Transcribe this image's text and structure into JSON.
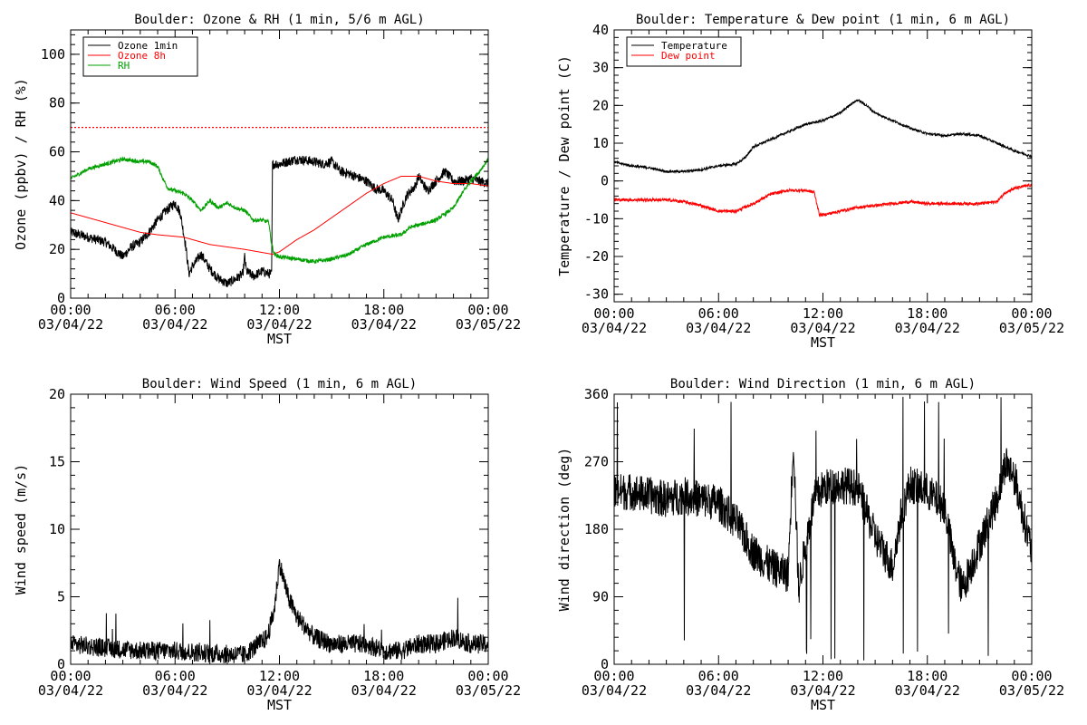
{
  "figure": {
    "background": "#ffffff",
    "x_tick_times": [
      "00:00",
      "06:00",
      "12:00",
      "18:00",
      "00:00"
    ],
    "x_tick_dates": [
      "03/04/22",
      "03/04/22",
      "03/04/22",
      "03/04/22",
      "03/05/22"
    ],
    "x_axis_label": "MST"
  },
  "chart_data": [
    {
      "id": "ozone_rh",
      "type": "line",
      "title": "Boulder: Ozone & RH (1 min, 5/6 m AGL)",
      "xlabel": "MST",
      "ylabel": "Ozone (ppbv) / RH (%)",
      "x_unit": "hours since 03/04/22 00:00 MST",
      "xlim": [
        0,
        24
      ],
      "ylim": [
        0,
        110
      ],
      "yticks": [
        0,
        20,
        40,
        60,
        80,
        100
      ],
      "grid": false,
      "legend_position": "top-left",
      "reference_line": {
        "y": 70,
        "color": "#ff0000",
        "style": "dotted"
      },
      "series": [
        {
          "name": "Ozone 1min",
          "color": "#000000",
          "noise": 2.0,
          "points": [
            [
              0,
              27
            ],
            [
              1,
              25
            ],
            [
              2,
              23
            ],
            [
              2.5,
              20
            ],
            [
              3,
              17
            ],
            [
              3.5,
              21
            ],
            [
              4,
              23
            ],
            [
              4.5,
              27
            ],
            [
              5,
              32
            ],
            [
              5.5,
              36
            ],
            [
              6,
              39
            ],
            [
              6.3,
              35
            ],
            [
              6.6,
              22
            ],
            [
              6.8,
              10
            ],
            [
              7,
              13
            ],
            [
              7.5,
              18
            ],
            [
              8,
              12
            ],
            [
              8.5,
              8
            ],
            [
              9,
              6
            ],
            [
              9.5,
              8
            ],
            [
              9.9,
              10
            ],
            [
              10,
              17
            ],
            [
              10.1,
              11
            ],
            [
              10.5,
              9
            ],
            [
              11,
              11
            ],
            [
              11.4,
              10
            ],
            [
              11.55,
              10
            ],
            [
              11.6,
              55
            ],
            [
              12,
              55
            ],
            [
              13,
              57
            ],
            [
              14,
              56
            ],
            [
              14.5,
              55
            ],
            [
              15,
              56
            ],
            [
              15.5,
              52
            ],
            [
              16,
              51
            ],
            [
              17,
              48
            ],
            [
              17.5,
              45
            ],
            [
              18,
              44
            ],
            [
              18.5,
              40
            ],
            [
              18.8,
              32
            ],
            [
              19,
              36
            ],
            [
              19.3,
              42
            ],
            [
              19.8,
              46
            ],
            [
              20,
              50
            ],
            [
              20.5,
              44
            ],
            [
              21,
              48
            ],
            [
              21.5,
              52
            ],
            [
              22,
              48
            ],
            [
              22.5,
              48
            ],
            [
              23,
              49
            ],
            [
              23.5,
              48
            ],
            [
              24,
              47
            ]
          ]
        },
        {
          "name": "Ozone 8h",
          "color": "#ff0000",
          "noise": 0,
          "points": [
            [
              0,
              35
            ],
            [
              2,
              31
            ],
            [
              4,
              27
            ],
            [
              5,
              26
            ],
            [
              6.5,
              25
            ],
            [
              8,
              22
            ],
            [
              10,
              20
            ],
            [
              11.6,
              18
            ],
            [
              12,
              19
            ],
            [
              13,
              24
            ],
            [
              14,
              28
            ],
            [
              15,
              33
            ],
            [
              16,
              38
            ],
            [
              17,
              43
            ],
            [
              18,
              47
            ],
            [
              19,
              50
            ],
            [
              20,
              50
            ],
            [
              21,
              48
            ],
            [
              22,
              47
            ],
            [
              23,
              47
            ],
            [
              24,
              46
            ]
          ]
        },
        {
          "name": "RH",
          "color": "#00a000",
          "noise": 0.8,
          "points": [
            [
              0,
              49
            ],
            [
              1,
              53
            ],
            [
              2,
              55
            ],
            [
              3,
              57
            ],
            [
              4,
              56
            ],
            [
              4.5,
              56
            ],
            [
              5,
              54
            ],
            [
              5.3,
              49
            ],
            [
              5.6,
              45
            ],
            [
              6,
              44
            ],
            [
              6.5,
              43
            ],
            [
              7,
              40
            ],
            [
              7.5,
              36
            ],
            [
              8,
              40
            ],
            [
              8.5,
              37
            ],
            [
              9,
              39
            ],
            [
              9.5,
              37
            ],
            [
              10,
              36
            ],
            [
              10.5,
              32
            ],
            [
              11,
              32
            ],
            [
              11.4,
              31
            ],
            [
              11.5,
              24
            ],
            [
              11.7,
              18
            ],
            [
              12,
              17
            ],
            [
              13,
              16
            ],
            [
              14,
              15
            ],
            [
              15,
              16
            ],
            [
              16,
              18
            ],
            [
              17,
              22
            ],
            [
              18,
              25
            ],
            [
              19,
              26
            ],
            [
              19.5,
              29
            ],
            [
              20,
              30
            ],
            [
              21,
              32
            ],
            [
              22,
              37
            ],
            [
              22.5,
              43
            ],
            [
              23,
              48
            ],
            [
              23.5,
              52
            ],
            [
              24,
              57
            ]
          ]
        }
      ]
    },
    {
      "id": "temp_dew",
      "type": "line",
      "title": "Boulder: Temperature & Dew point (1 min, 6 m AGL)",
      "xlabel": "MST",
      "ylabel": "Temperature / Dew point (C)",
      "x_unit": "hours since 03/04/22 00:00 MST",
      "xlim": [
        0,
        24
      ],
      "ylim": [
        -32,
        40
      ],
      "yticks": [
        -30,
        -20,
        -10,
        0,
        10,
        20,
        30,
        40
      ],
      "grid": false,
      "legend_position": "top-left",
      "series": [
        {
          "name": "Temperature",
          "color": "#000000",
          "noise": 0.3,
          "points": [
            [
              0,
              5
            ],
            [
              1,
              4
            ],
            [
              2,
              3.5
            ],
            [
              3,
              2.5
            ],
            [
              4,
              2.5
            ],
            [
              5,
              3
            ],
            [
              6,
              4
            ],
            [
              7,
              4.5
            ],
            [
              7.5,
              6
            ],
            [
              8,
              9
            ],
            [
              9,
              11
            ],
            [
              10,
              13
            ],
            [
              11,
              15
            ],
            [
              12,
              16
            ],
            [
              13,
              18
            ],
            [
              13.5,
              20
            ],
            [
              14,
              21.5
            ],
            [
              14.5,
              20
            ],
            [
              15,
              18
            ],
            [
              16,
              16
            ],
            [
              17,
              14
            ],
            [
              18,
              12.5
            ],
            [
              19,
              12
            ],
            [
              20,
              12.5
            ],
            [
              21,
              12
            ],
            [
              22,
              10
            ],
            [
              23,
              8
            ],
            [
              24,
              6.5
            ]
          ]
        },
        {
          "name": "Dew point",
          "color": "#ff0000",
          "noise": 0.4,
          "points": [
            [
              0,
              -5
            ],
            [
              1,
              -5
            ],
            [
              2,
              -5
            ],
            [
              3,
              -5
            ],
            [
              4,
              -5.5
            ],
            [
              5,
              -6.5
            ],
            [
              6,
              -8
            ],
            [
              7,
              -8
            ],
            [
              8,
              -6
            ],
            [
              9,
              -3.5
            ],
            [
              10,
              -2.5
            ],
            [
              11,
              -2.5
            ],
            [
              11.5,
              -3
            ],
            [
              11.8,
              -9
            ],
            [
              12,
              -9
            ],
            [
              13,
              -8
            ],
            [
              14,
              -7
            ],
            [
              15,
              -6.5
            ],
            [
              16,
              -6
            ],
            [
              17,
              -5.5
            ],
            [
              18,
              -6
            ],
            [
              19,
              -6
            ],
            [
              20,
              -6
            ],
            [
              21,
              -6
            ],
            [
              22,
              -5.5
            ],
            [
              22.5,
              -3
            ],
            [
              23,
              -2
            ],
            [
              24,
              -1
            ]
          ]
        }
      ]
    },
    {
      "id": "wind_speed",
      "type": "line",
      "title": "Boulder: Wind Speed (1 min, 6 m AGL)",
      "xlabel": "MST",
      "ylabel": "Wind speed (m/s)",
      "x_unit": "hours since 03/04/22 00:00 MST",
      "xlim": [
        0,
        24
      ],
      "ylim": [
        0,
        20
      ],
      "yticks": [
        0,
        5,
        10,
        15,
        20
      ],
      "grid": false,
      "series": [
        {
          "name": "",
          "color": "#000000",
          "noise": 0.7,
          "points": [
            [
              0,
              1.5
            ],
            [
              2,
              1.2
            ],
            [
              4,
              1
            ],
            [
              6,
              1
            ],
            [
              8,
              0.8
            ],
            [
              10,
              0.7
            ],
            [
              10.8,
              1.5
            ],
            [
              11.3,
              2
            ],
            [
              11.7,
              4
            ],
            [
              12,
              7.5
            ],
            [
              12.5,
              5
            ],
            [
              13,
              3.5
            ],
            [
              14,
              2
            ],
            [
              15,
              1.5
            ],
            [
              16,
              1.5
            ],
            [
              17,
              1.5
            ],
            [
              18,
              1
            ],
            [
              19,
              1
            ],
            [
              20,
              1.5
            ],
            [
              21,
              1.5
            ],
            [
              22,
              2
            ],
            [
              23,
              1.5
            ],
            [
              24,
              1.5
            ]
          ]
        }
      ]
    },
    {
      "id": "wind_dir",
      "type": "line",
      "title": "Boulder: Wind Direction (1 min, 6 m AGL)",
      "xlabel": "MST",
      "ylabel": "Wind direction (deg)",
      "x_unit": "hours since 03/04/22 00:00 MST",
      "xlim": [
        0,
        24
      ],
      "ylim": [
        0,
        360
      ],
      "yticks": [
        0,
        90,
        180,
        270,
        360
      ],
      "grid": false,
      "series": [
        {
          "name": "",
          "color": "#000000",
          "noise": 25,
          "points": [
            [
              0,
              230
            ],
            [
              1,
              230
            ],
            [
              2,
              225
            ],
            [
              3,
              220
            ],
            [
              4,
              225
            ],
            [
              5,
              220
            ],
            [
              6,
              215
            ],
            [
              7,
              190
            ],
            [
              8,
              150
            ],
            [
              9,
              130
            ],
            [
              10,
              120
            ],
            [
              10.3,
              300
            ],
            [
              10.6,
              100
            ],
            [
              11,
              160
            ],
            [
              11.5,
              220
            ],
            [
              12,
              235
            ],
            [
              13,
              240
            ],
            [
              14,
              235
            ],
            [
              15,
              170
            ],
            [
              16,
              130
            ],
            [
              16.5,
              200
            ],
            [
              17,
              240
            ],
            [
              18,
              230
            ],
            [
              19,
              210
            ],
            [
              19.5,
              140
            ],
            [
              20,
              100
            ],
            [
              21,
              160
            ],
            [
              22,
              220
            ],
            [
              22.5,
              270
            ],
            [
              23,
              250
            ],
            [
              23.5,
              200
            ],
            [
              24,
              150
            ]
          ]
        }
      ]
    }
  ]
}
